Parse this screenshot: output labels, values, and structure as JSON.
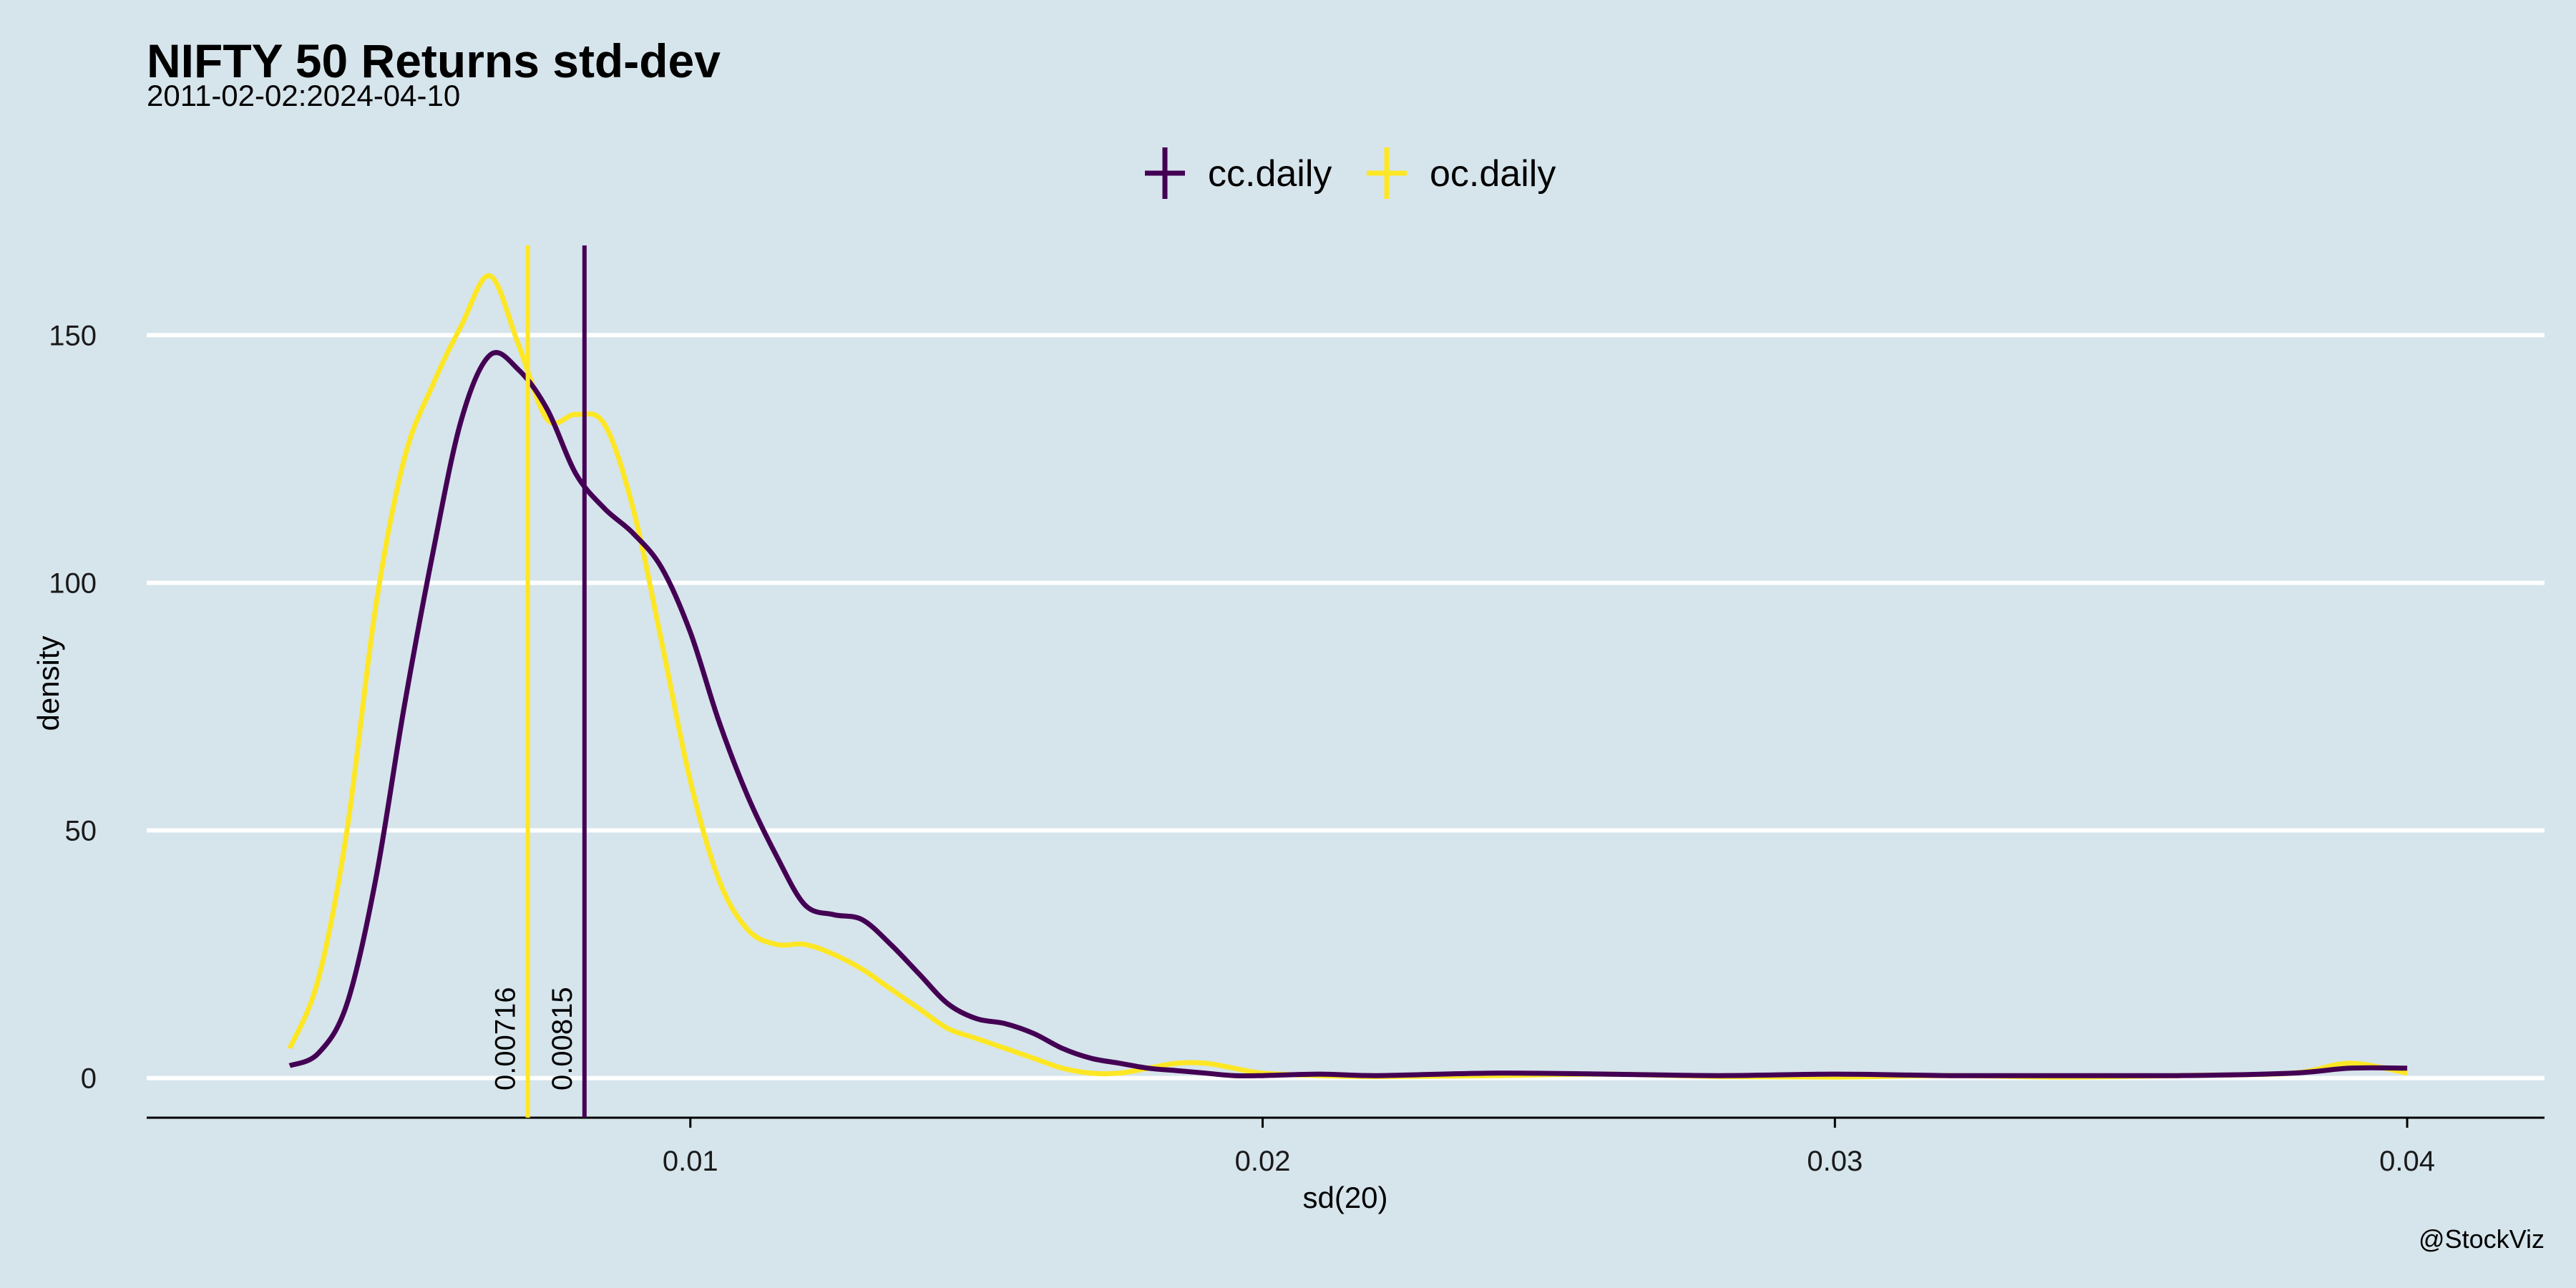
{
  "chart_data": {
    "type": "line",
    "title": "NIFTY 50 Returns std-dev",
    "subtitle": "2011-02-02:2024-04-10",
    "xlabel": "sd(20)",
    "ylabel": "density",
    "caption": "@StockViz",
    "xlim": [
      0.0005,
      0.0424
    ],
    "ylim": [
      -8,
      170
    ],
    "x_ticks": [
      0.01,
      0.02,
      0.03,
      0.04
    ],
    "x_tick_labels": [
      "0.01",
      "0.02",
      "0.03",
      "0.04"
    ],
    "y_ticks": [
      0,
      50,
      100,
      150
    ],
    "y_tick_labels": [
      "0",
      "50",
      "100",
      "150"
    ],
    "grid": "horizontal",
    "legend_position": "top-center",
    "series": [
      {
        "name": "cc.daily",
        "color": "#440154",
        "x": [
          0.003,
          0.0035,
          0.004,
          0.0045,
          0.005,
          0.0055,
          0.006,
          0.0065,
          0.007,
          0.0075,
          0.008,
          0.0085,
          0.009,
          0.0095,
          0.01,
          0.0105,
          0.011,
          0.0115,
          0.012,
          0.0125,
          0.013,
          0.0135,
          0.014,
          0.0145,
          0.015,
          0.0155,
          0.016,
          0.0165,
          0.017,
          0.0175,
          0.018,
          0.0185,
          0.019,
          0.0195,
          0.02,
          0.021,
          0.022,
          0.024,
          0.026,
          0.028,
          0.03,
          0.032,
          0.034,
          0.036,
          0.038,
          0.039,
          0.04
        ],
        "y": [
          2.5,
          5,
          15,
          40,
          75,
          106,
          133,
          146,
          143,
          135,
          122,
          115,
          110,
          103,
          90,
          72,
          57,
          45,
          35,
          33,
          32,
          27,
          21,
          15,
          12,
          11,
          9,
          6,
          4,
          3,
          2,
          1.5,
          1,
          0.5,
          0.5,
          0.8,
          0.5,
          1,
          0.8,
          0.5,
          0.8,
          0.5,
          0.5,
          0.5,
          1,
          2,
          2
        ]
      },
      {
        "name": "oc.daily",
        "color": "#fde725",
        "x": [
          0.003,
          0.0035,
          0.004,
          0.0045,
          0.005,
          0.0055,
          0.006,
          0.0065,
          0.007,
          0.0075,
          0.008,
          0.0085,
          0.009,
          0.0095,
          0.01,
          0.0105,
          0.011,
          0.0115,
          0.012,
          0.0125,
          0.013,
          0.0135,
          0.014,
          0.0145,
          0.015,
          0.0155,
          0.016,
          0.0165,
          0.017,
          0.0175,
          0.018,
          0.0185,
          0.019,
          0.0195,
          0.02,
          0.021,
          0.022,
          0.024,
          0.026,
          0.028,
          0.03,
          0.032,
          0.034,
          0.036,
          0.038,
          0.039,
          0.04
        ],
        "y": [
          6,
          20,
          50,
          95,
          125,
          140,
          152,
          162,
          148,
          133,
          134,
          132,
          115,
          88,
          60,
          40,
          30,
          27,
          27,
          25,
          22,
          18,
          14,
          10,
          8,
          6,
          4,
          2,
          1,
          1,
          2,
          3,
          3,
          2,
          1,
          0.5,
          0.3,
          0.5,
          0.8,
          0.3,
          0.2,
          0.5,
          0.2,
          0.5,
          1,
          3,
          1
        ]
      }
    ],
    "reference_lines": [
      {
        "series": "oc.daily",
        "x": 0.00716,
        "label": "0.00716",
        "color": "#fde725"
      },
      {
        "series": "cc.daily",
        "x": 0.00815,
        "label": "0.00815",
        "color": "#440154"
      }
    ]
  }
}
